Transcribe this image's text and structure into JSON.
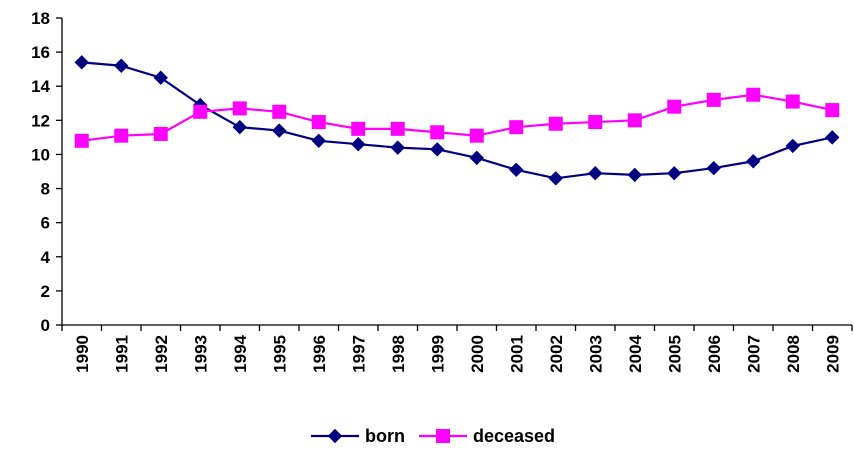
{
  "chart_data": {
    "type": "line",
    "title": "",
    "xlabel": "",
    "ylabel": "",
    "categories": [
      "1990",
      "1991",
      "1992",
      "1993",
      "1994",
      "1995",
      "1996",
      "1997",
      "1998",
      "1999",
      "2000",
      "2001",
      "2002",
      "2003",
      "2004",
      "2005",
      "2006",
      "2007",
      "2008",
      "2009"
    ],
    "ylim": [
      0,
      18
    ],
    "yticks": [
      "0",
      "2",
      "4",
      "6",
      "8",
      "10",
      "12",
      "14",
      "16",
      "18"
    ],
    "grid": false,
    "legend": "bottom-center",
    "series": [
      {
        "name": "born",
        "color": "#000080",
        "marker": "diamond",
        "values": [
          15.4,
          15.2,
          14.5,
          12.9,
          11.6,
          11.4,
          10.8,
          10.6,
          10.4,
          10.3,
          9.8,
          9.1,
          8.6,
          8.9,
          8.8,
          8.9,
          9.2,
          9.6,
          10.5,
          11.0
        ]
      },
      {
        "name": "deceased",
        "color": "#FF00FF",
        "marker": "square",
        "values": [
          10.8,
          11.1,
          11.2,
          12.5,
          12.7,
          12.5,
          11.9,
          11.5,
          11.5,
          11.3,
          11.1,
          11.6,
          11.8,
          11.9,
          12.0,
          12.8,
          13.2,
          13.5,
          13.1,
          12.6
        ]
      }
    ]
  }
}
